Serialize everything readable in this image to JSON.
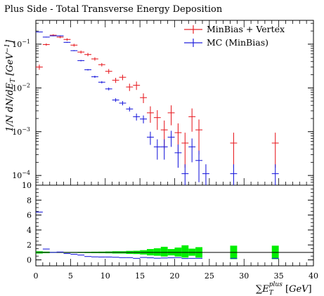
{
  "chart_data": [
    {
      "type": "scatter",
      "title": "Plus Side - Total Transverse Energy Deposition",
      "ylabel": "1/N dN/dE_T [GeV^-1]",
      "yscale": "log",
      "ylim": [
        6e-05,
        0.35
      ],
      "xlim": [
        0,
        40
      ],
      "y_ticks": [
        "10^-1",
        "10^-2",
        "10^-3",
        "10^-4"
      ],
      "legend": {
        "placement": "top-right",
        "entries": [
          "MinBias + Vertex",
          "MC (MinBias)"
        ]
      },
      "series": [
        {
          "name": "MinBias + Vertex",
          "color": "#e8242a",
          "points": [
            {
              "x": 0.5,
              "y": 0.03,
              "err": 0.004
            },
            {
              "x": 1.5,
              "y": 0.098,
              "err": 0.006
            },
            {
              "x": 2.5,
              "y": 0.16,
              "err": 0.008
            },
            {
              "x": 3.5,
              "y": 0.145,
              "err": 0.008
            },
            {
              "x": 4.5,
              "y": 0.128,
              "err": 0.008
            },
            {
              "x": 5.5,
              "y": 0.095,
              "err": 0.007
            },
            {
              "x": 6.5,
              "y": 0.066,
              "err": 0.005
            },
            {
              "x": 7.5,
              "y": 0.058,
              "err": 0.005
            },
            {
              "x": 8.5,
              "y": 0.046,
              "err": 0.004
            },
            {
              "x": 9.5,
              "y": 0.034,
              "err": 0.003
            },
            {
              "x": 10.5,
              "y": 0.024,
              "err": 0.003
            },
            {
              "x": 11.5,
              "y": 0.015,
              "err": 0.002
            },
            {
              "x": 12.5,
              "y": 0.0175,
              "err": 0.0025
            },
            {
              "x": 13.5,
              "y": 0.0105,
              "err": 0.002
            },
            {
              "x": 14.5,
              "y": 0.0115,
              "err": 0.0025
            },
            {
              "x": 15.5,
              "y": 0.006,
              "err": 0.0015
            },
            {
              "x": 16.5,
              "y": 0.0027,
              "err": 0.0011
            },
            {
              "x": 17.5,
              "y": 0.0021,
              "err": 0.001
            },
            {
              "x": 18.5,
              "y": 0.0011,
              "err": 0.0007
            },
            {
              "x": 19.5,
              "y": 0.0027,
              "err": 0.0013
            },
            {
              "x": 20.5,
              "y": 0.00095,
              "err": 0.0006
            },
            {
              "x": 21.5,
              "y": 0.00055,
              "err": 0.0004
            },
            {
              "x": 22.5,
              "y": 0.0022,
              "err": 0.0012
            },
            {
              "x": 23.5,
              "y": 0.0011,
              "err": 0.0008
            },
            {
              "x": 28.5,
              "y": 0.00055,
              "err": 0.0004
            },
            {
              "x": 34.5,
              "y": 0.00055,
              "err": 0.0004
            }
          ]
        },
        {
          "name": "MC (MinBias)",
          "color": "#2222dd",
          "points": [
            {
              "x": 0.5,
              "y": 0.19,
              "err": 0.003
            },
            {
              "x": 1.5,
              "y": 0.145,
              "err": 0.003
            },
            {
              "x": 2.5,
              "y": 0.155,
              "err": 0.003
            },
            {
              "x": 3.5,
              "y": 0.155,
              "err": 0.003
            },
            {
              "x": 4.5,
              "y": 0.11,
              "err": 0.003
            },
            {
              "x": 5.5,
              "y": 0.071,
              "err": 0.002
            },
            {
              "x": 6.5,
              "y": 0.042,
              "err": 0.0015
            },
            {
              "x": 7.5,
              "y": 0.026,
              "err": 0.001
            },
            {
              "x": 8.5,
              "y": 0.018,
              "err": 0.001
            },
            {
              "x": 9.5,
              "y": 0.0135,
              "err": 0.0008
            },
            {
              "x": 10.5,
              "y": 0.0095,
              "err": 0.0007
            },
            {
              "x": 11.5,
              "y": 0.0053,
              "err": 0.0005
            },
            {
              "x": 12.5,
              "y": 0.0045,
              "err": 0.0005
            },
            {
              "x": 13.5,
              "y": 0.0033,
              "err": 0.0004
            },
            {
              "x": 14.5,
              "y": 0.0022,
              "err": 0.0004
            },
            {
              "x": 15.5,
              "y": 0.00195,
              "err": 0.0004
            },
            {
              "x": 16.5,
              "y": 0.00075,
              "err": 0.00025
            },
            {
              "x": 17.5,
              "y": 0.00045,
              "err": 0.00022
            },
            {
              "x": 18.5,
              "y": 0.00045,
              "err": 0.00022
            },
            {
              "x": 19.5,
              "y": 0.00075,
              "err": 0.0003
            },
            {
              "x": 20.5,
              "y": 0.00033,
              "err": 0.00018
            },
            {
              "x": 21.5,
              "y": 0.00011,
              "err": 7e-05
            },
            {
              "x": 22.5,
              "y": 0.00045,
              "err": 0.00025
            },
            {
              "x": 23.5,
              "y": 0.00022,
              "err": 0.00015
            },
            {
              "x": 24.5,
              "y": 0.00011,
              "err": 7e-05
            },
            {
              "x": 28.5,
              "y": 0.00011,
              "err": 7e-05
            },
            {
              "x": 34.5,
              "y": 0.00011,
              "err": 7e-05
            }
          ]
        }
      ]
    },
    {
      "type": "scatter",
      "xlabel": "∑E_T^plus [GeV]",
      "xlim": [
        0,
        40
      ],
      "ylim": [
        -0.8,
        10
      ],
      "x_ticks": [
        "0",
        "5",
        "10",
        "15",
        "20",
        "25",
        "30",
        "35",
        "40"
      ],
      "y_ticks": [
        "10",
        "8",
        "6",
        "4",
        "2",
        "0"
      ],
      "reference_line": 1.0,
      "series": [
        {
          "name": "ratio",
          "color": "#2222dd",
          "points": [
            {
              "x": 0.5,
              "y": 6.4
            },
            {
              "x": 1.5,
              "y": 1.45
            },
            {
              "x": 2.5,
              "y": 1.0
            },
            {
              "x": 3.5,
              "y": 1.05
            },
            {
              "x": 4.5,
              "y": 0.85
            },
            {
              "x": 5.5,
              "y": 0.75
            },
            {
              "x": 6.5,
              "y": 0.65
            },
            {
              "x": 7.5,
              "y": 0.45
            },
            {
              "x": 8.5,
              "y": 0.4
            },
            {
              "x": 9.5,
              "y": 0.38
            },
            {
              "x": 10.5,
              "y": 0.38
            },
            {
              "x": 11.5,
              "y": 0.35
            },
            {
              "x": 12.5,
              "y": 0.3
            },
            {
              "x": 13.5,
              "y": 0.3
            },
            {
              "x": 14.5,
              "y": 0.2
            },
            {
              "x": 15.5,
              "y": 0.32
            },
            {
              "x": 16.5,
              "y": 0.28
            },
            {
              "x": 17.5,
              "y": 0.22
            },
            {
              "x": 18.5,
              "y": 0.25
            },
            {
              "x": 19.5,
              "y": 0.28
            },
            {
              "x": 20.5,
              "y": 0.3
            },
            {
              "x": 21.5,
              "y": 0.18
            },
            {
              "x": 22.5,
              "y": 0.2
            },
            {
              "x": 23.5,
              "y": 0.2
            },
            {
              "x": 28.5,
              "y": 0.2
            },
            {
              "x": 34.5,
              "y": 0.2
            }
          ]
        }
      ],
      "uncertainty_bands": {
        "color": "#00ee00",
        "bins": [
          {
            "x": 0.5,
            "lo": 0.85,
            "hi": 1.15
          },
          {
            "x": 1.5,
            "lo": 0.9,
            "hi": 1.1
          },
          {
            "x": 2.5,
            "lo": 0.95,
            "hi": 1.05
          },
          {
            "x": 3.5,
            "lo": 0.95,
            "hi": 1.05
          },
          {
            "x": 4.5,
            "lo": 0.95,
            "hi": 1.05
          },
          {
            "x": 5.5,
            "lo": 0.94,
            "hi": 1.06
          },
          {
            "x": 6.5,
            "lo": 0.93,
            "hi": 1.07
          },
          {
            "x": 7.5,
            "lo": 0.92,
            "hi": 1.08
          },
          {
            "x": 8.5,
            "lo": 0.91,
            "hi": 1.09
          },
          {
            "x": 9.5,
            "lo": 0.9,
            "hi": 1.1
          },
          {
            "x": 10.5,
            "lo": 0.88,
            "hi": 1.12
          },
          {
            "x": 11.5,
            "lo": 0.85,
            "hi": 1.15
          },
          {
            "x": 12.5,
            "lo": 0.85,
            "hi": 1.15
          },
          {
            "x": 13.5,
            "lo": 0.8,
            "hi": 1.2
          },
          {
            "x": 14.5,
            "lo": 0.78,
            "hi": 1.22
          },
          {
            "x": 15.5,
            "lo": 0.72,
            "hi": 1.3
          },
          {
            "x": 16.5,
            "lo": 0.6,
            "hi": 1.45
          },
          {
            "x": 17.5,
            "lo": 0.55,
            "hi": 1.55
          },
          {
            "x": 18.5,
            "lo": 0.45,
            "hi": 1.75
          },
          {
            "x": 19.5,
            "lo": 0.6,
            "hi": 1.45
          },
          {
            "x": 20.5,
            "lo": 0.45,
            "hi": 1.65
          },
          {
            "x": 21.5,
            "lo": 0.3,
            "hi": 1.95
          },
          {
            "x": 22.5,
            "lo": 0.55,
            "hi": 1.5
          },
          {
            "x": 23.5,
            "lo": 0.3,
            "hi": 1.7
          },
          {
            "x": 28.5,
            "lo": 0.1,
            "hi": 1.9
          },
          {
            "x": 34.5,
            "lo": 0.1,
            "hi": 1.9
          }
        ]
      }
    }
  ]
}
